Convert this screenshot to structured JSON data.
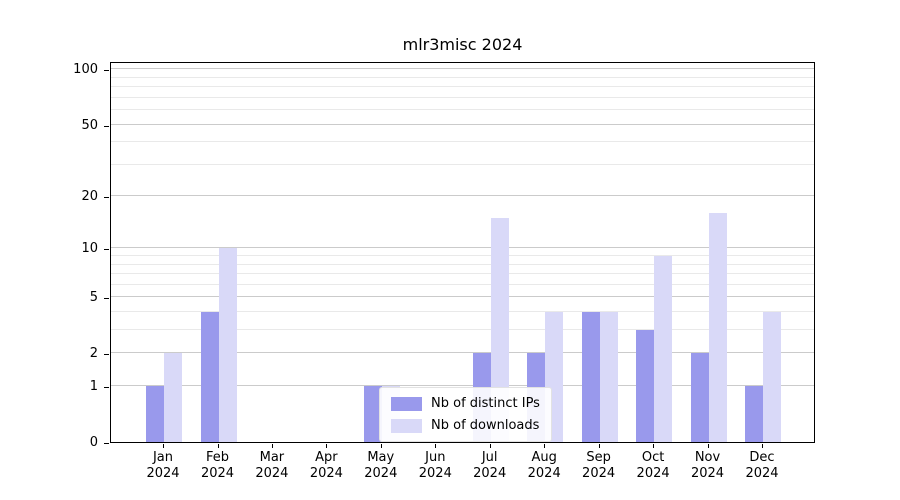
{
  "title": "mlr3misc 2024",
  "chart_data": {
    "type": "bar",
    "title": "mlr3misc 2024",
    "categories": [
      "Jan 2024",
      "Feb 2024",
      "Mar 2024",
      "Apr 2024",
      "May 2024",
      "Jun 2024",
      "Jul 2024",
      "Aug 2024",
      "Sep 2024",
      "Oct 2024",
      "Nov 2024",
      "Dec 2024"
    ],
    "series": [
      {
        "name": "Nb of distinct IPs",
        "color": "#9999ec",
        "values": [
          1,
          4,
          0,
          0,
          1,
          0,
          2,
          2,
          4,
          3,
          2,
          1
        ]
      },
      {
        "name": "Nb of downloads",
        "color": "#d9d9f8",
        "values": [
          2,
          10,
          0,
          0,
          1,
          0,
          15,
          4,
          4,
          9,
          16,
          4
        ]
      }
    ],
    "xlabel": "",
    "ylabel": "",
    "yscale": "log1p",
    "y_ticks": [
      0,
      1,
      2,
      5,
      10,
      20,
      50,
      100
    ],
    "y_minor_gridlines": [
      3,
      4,
      6,
      7,
      8,
      9,
      30,
      40,
      60,
      70,
      80,
      90
    ],
    "ylim": [
      0,
      111
    ],
    "grid": true,
    "legend_position": "lower-center-inside"
  }
}
